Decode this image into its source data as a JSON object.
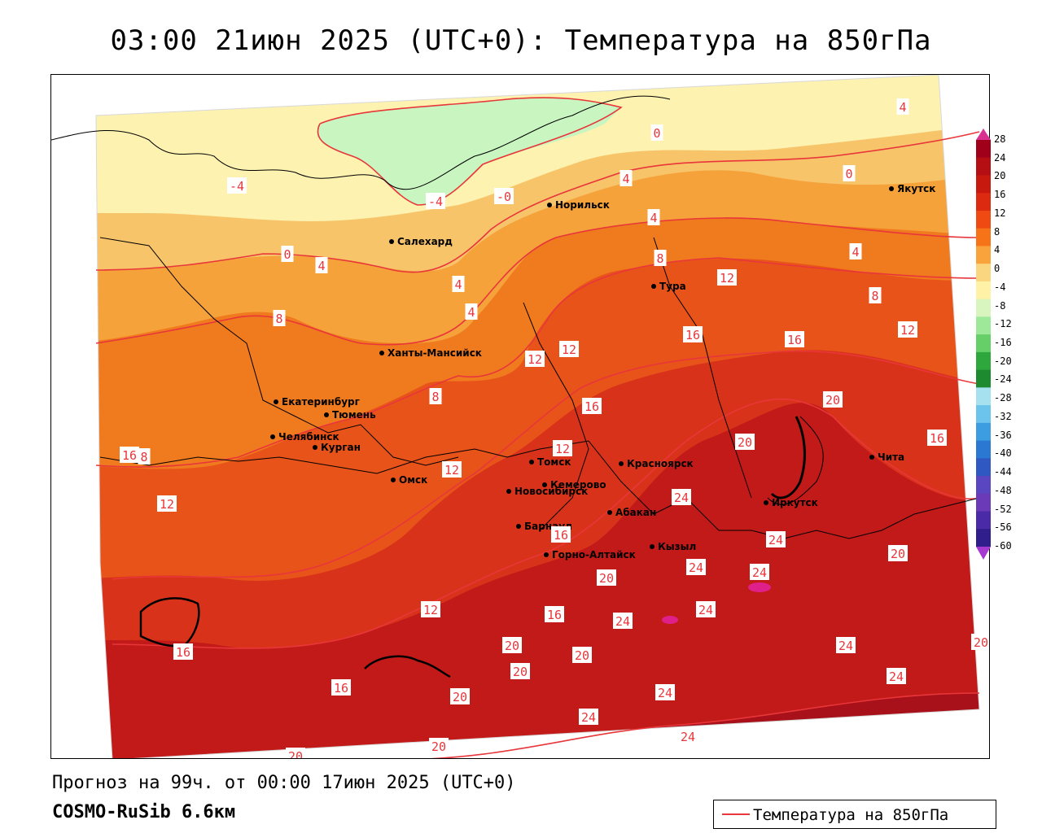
{
  "title": "03:00 21июн 2025 (UTC+0): Температура на 850гПа",
  "forecast_line": "Прогноз на 99ч. от 00:00 17июн 2025 (UTC+0)",
  "model_line": "COSMO-RuSib 6.6км",
  "legend": {
    "label": "Температура на 850гПа",
    "color": "#e8363a"
  },
  "colorbar": {
    "ticks": [
      "28",
      "24",
      "20",
      "16",
      "12",
      "8",
      "4",
      "0",
      "-4",
      "-8",
      "-12",
      "-16",
      "-20",
      "-24",
      "-28",
      "-32",
      "-36",
      "-40",
      "-44",
      "-48",
      "-52",
      "-56",
      "-60"
    ],
    "colors": [
      "#a0001a",
      "#b50f14",
      "#c8190f",
      "#dc2a10",
      "#ee4a12",
      "#f77318",
      "#f8a33c",
      "#fbd681",
      "#fff2a6",
      "#d8f5c0",
      "#9ee89a",
      "#66cf68",
      "#2ea83c",
      "#1e8a30",
      "#a6e1f0",
      "#6cc4ec",
      "#3c9ee0",
      "#2a78d2",
      "#2f58c2",
      "#5a46c0",
      "#6a3ab8",
      "#4a2aa6",
      "#301e8c"
    ],
    "top_arrow_color": "#d9318f",
    "bottom_arrow_color": "#a63ad0"
  },
  "field_colors": {
    "cold_green": "#c8f5c0",
    "pale_yellow": "#fdf2b0",
    "light_orange": "#f8c46a",
    "orange": "#f5a23a",
    "deep_orange": "#f07a1e",
    "red_orange": "#e8531a",
    "red": "#d8331a",
    "dark_red": "#c11a18",
    "crimson": "#a8111a",
    "magenta": "#e0208a"
  },
  "cities": [
    {
      "name": "Норильск"
    },
    {
      "name": "Якутск"
    },
    {
      "name": "Салехард"
    },
    {
      "name": "Тура"
    },
    {
      "name": "Ханты-Мансийск"
    },
    {
      "name": "Екатеринбург"
    },
    {
      "name": "Тюмень"
    },
    {
      "name": "Челябинск"
    },
    {
      "name": "Курган"
    },
    {
      "name": "Омск"
    },
    {
      "name": "Новосибирск"
    },
    {
      "name": "Томск"
    },
    {
      "name": "Кемерово"
    },
    {
      "name": "Красноярск"
    },
    {
      "name": "Барнаул"
    },
    {
      "name": "Абакан"
    },
    {
      "name": "Горно-Алтайск"
    },
    {
      "name": "Кызыл"
    },
    {
      "name": "Иркутск"
    },
    {
      "name": "Чита"
    }
  ],
  "isotherm_labels": [
    {
      "text": "4"
    },
    {
      "text": "0"
    },
    {
      "text": "0"
    },
    {
      "text": "-4"
    },
    {
      "text": "-4"
    },
    {
      "text": "-0"
    },
    {
      "text": "4"
    },
    {
      "text": "4"
    },
    {
      "text": "0"
    },
    {
      "text": "4"
    },
    {
      "text": "4"
    },
    {
      "text": "4"
    },
    {
      "text": "8"
    },
    {
      "text": "12"
    },
    {
      "text": "4"
    },
    {
      "text": "8"
    },
    {
      "text": "16"
    },
    {
      "text": "16"
    },
    {
      "text": "12"
    },
    {
      "text": "12"
    },
    {
      "text": "8"
    },
    {
      "text": "8"
    },
    {
      "text": "12"
    },
    {
      "text": "16"
    },
    {
      "text": "20"
    },
    {
      "text": "20"
    },
    {
      "text": "16"
    },
    {
      "text": "12"
    },
    {
      "text": "12"
    },
    {
      "text": "8"
    },
    {
      "text": "12"
    },
    {
      "text": "16"
    },
    {
      "text": "24"
    },
    {
      "text": "24"
    },
    {
      "text": "24"
    },
    {
      "text": "24"
    },
    {
      "text": "20"
    },
    {
      "text": "20"
    },
    {
      "text": "16"
    },
    {
      "text": "16"
    },
    {
      "text": "12"
    },
    {
      "text": "24"
    },
    {
      "text": "24"
    },
    {
      "text": "20"
    },
    {
      "text": "20"
    },
    {
      "text": "24"
    },
    {
      "text": "24"
    },
    {
      "text": "24"
    },
    {
      "text": "20"
    },
    {
      "text": "16"
    },
    {
      "text": "20"
    },
    {
      "text": "24"
    },
    {
      "text": "20"
    },
    {
      "text": "24"
    },
    {
      "text": "20"
    },
    {
      "text": "20"
    },
    {
      "text": "16"
    }
  ]
}
